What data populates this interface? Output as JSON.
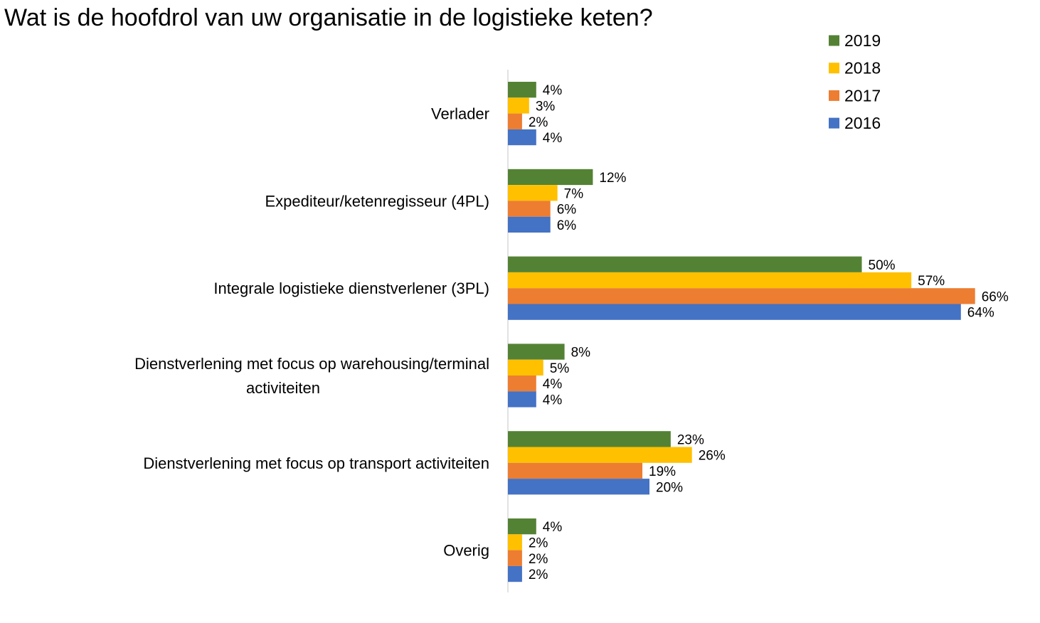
{
  "chart_data": {
    "type": "bar",
    "orientation": "horizontal",
    "title": "Wat is de hoofdrol van uw organisatie in de logistieke keten?",
    "xlabel": "",
    "ylabel": "",
    "xlim": [
      0,
      70
    ],
    "grid": false,
    "legend_position": "top-right",
    "categories": [
      [
        "Verlader"
      ],
      [
        "Expediteur/ketenregisseur (4PL)"
      ],
      [
        "Integrale logistieke dienstverlener (3PL)"
      ],
      [
        "Dienstverlening met focus op warehousing/terminal",
        "activiteiten"
      ],
      [
        "Dienstverlening met focus op transport activiteiten"
      ],
      [
        "Overig"
      ]
    ],
    "series": [
      {
        "name": "2019",
        "color": "#548235",
        "values": [
          4,
          12,
          50,
          8,
          23,
          4
        ]
      },
      {
        "name": "2018",
        "color": "#FFC000",
        "values": [
          3,
          7,
          57,
          5,
          26,
          2
        ]
      },
      {
        "name": "2017",
        "color": "#ED7D31",
        "values": [
          2,
          6,
          66,
          4,
          19,
          2
        ]
      },
      {
        "name": "2016",
        "color": "#4472C4",
        "values": [
          4,
          6,
          64,
          4,
          20,
          2
        ]
      }
    ],
    "value_suffix": "%"
  }
}
